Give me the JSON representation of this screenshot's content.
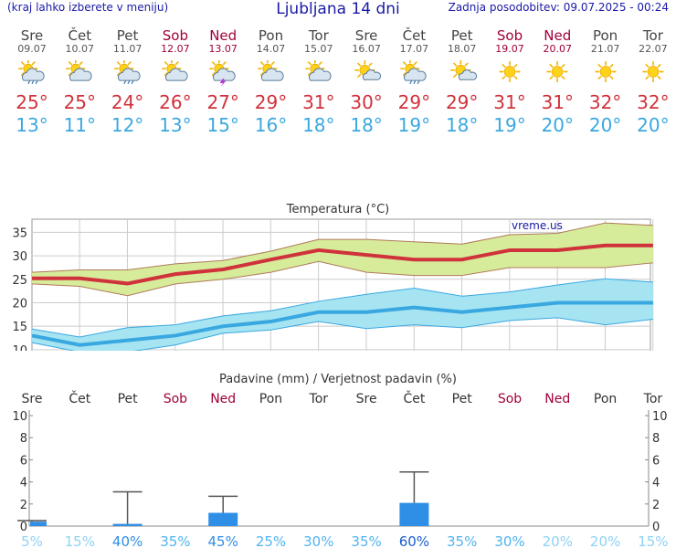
{
  "header": {
    "left": "(kraj lahko izberete v meniju)",
    "title": "Ljubljana 14 dni",
    "right": "Zadnja posodobitev: 09.07.2025 - 00:24"
  },
  "days": [
    {
      "name": "Sre",
      "date": "09.07",
      "weekend": false,
      "icon": "sun-cloud-rain-icon",
      "tmax": "25°",
      "tmin": "13°"
    },
    {
      "name": "Čet",
      "date": "10.07",
      "weekend": false,
      "icon": "sun-cloud-icon",
      "tmax": "25°",
      "tmin": "11°"
    },
    {
      "name": "Pet",
      "date": "11.07",
      "weekend": false,
      "icon": "sun-cloud-rain-icon",
      "tmax": "24°",
      "tmin": "12°"
    },
    {
      "name": "Sob",
      "date": "12.07",
      "weekend": true,
      "icon": "sun-cloud-icon",
      "tmax": "26°",
      "tmin": "13°"
    },
    {
      "name": "Ned",
      "date": "13.07",
      "weekend": true,
      "icon": "sun-cloud-storm-icon",
      "tmax": "27°",
      "tmin": "15°"
    },
    {
      "name": "Pon",
      "date": "14.07",
      "weekend": false,
      "icon": "sun-cloud-icon",
      "tmax": "29°",
      "tmin": "16°"
    },
    {
      "name": "Tor",
      "date": "15.07",
      "weekend": false,
      "icon": "sun-cloud-icon",
      "tmax": "31°",
      "tmin": "18°"
    },
    {
      "name": "Sre",
      "date": "16.07",
      "weekend": false,
      "icon": "sun-small-cloud-icon",
      "tmax": "30°",
      "tmin": "18°"
    },
    {
      "name": "Čet",
      "date": "17.07",
      "weekend": false,
      "icon": "sun-cloud-rain-icon",
      "tmax": "29°",
      "tmin": "19°"
    },
    {
      "name": "Pet",
      "date": "18.07",
      "weekend": false,
      "icon": "sun-small-cloud-icon",
      "tmax": "29°",
      "tmin": "18°"
    },
    {
      "name": "Sob",
      "date": "19.07",
      "weekend": true,
      "icon": "sun-icon",
      "tmax": "31°",
      "tmin": "19°"
    },
    {
      "name": "Ned",
      "date": "20.07",
      "weekend": true,
      "icon": "sun-icon",
      "tmax": "31°",
      "tmin": "20°"
    },
    {
      "name": "Pon",
      "date": "21.07",
      "weekend": false,
      "icon": "sun-icon",
      "tmax": "32°",
      "tmin": "20°"
    },
    {
      "name": "Tor",
      "date": "22.07",
      "weekend": false,
      "icon": "sun-icon",
      "tmax": "32°",
      "tmin": "20°"
    }
  ],
  "colors": {
    "max": "#d0323c",
    "min": "#3aa8e0",
    "weekend": "#a0003a",
    "max_band": "#d6ec9a",
    "min_band": "#a6e4f2",
    "precip_bar": "#2f8ee6"
  },
  "chart_data": [
    {
      "type": "line",
      "title": "Temperatura (°C)",
      "watermark": "vreme.us",
      "categories": [
        "Sre",
        "Čet",
        "Pet",
        "Sob",
        "Ned",
        "Pon",
        "Tor",
        "Sre",
        "Čet",
        "Pet",
        "Sob",
        "Ned",
        "Pon",
        "Tor"
      ],
      "ylim": [
        9,
        38
      ],
      "yticks": [
        10,
        15,
        20,
        25,
        30,
        35
      ],
      "grid": true,
      "series": [
        {
          "values": [
            25.2,
            25.2,
            24.1,
            26.1,
            27.1,
            29.2,
            31.2,
            30.2,
            29.2,
            29.2,
            31.2,
            31.2,
            32.2,
            32.2
          ],
          "low": [
            24,
            23.5,
            21.5,
            24,
            25,
            26.5,
            28.8,
            26.5,
            25.8,
            25.8,
            27.5,
            27.5,
            27.5,
            28.5
          ],
          "high": [
            26.5,
            27,
            27,
            28.3,
            29,
            31,
            33.5,
            33.5,
            33,
            32.5,
            34.5,
            34.8,
            37,
            36.5
          ]
        },
        {
          "values": [
            13,
            11,
            12,
            13,
            15,
            16,
            18,
            18,
            19,
            18,
            19,
            20,
            20,
            20
          ],
          "low": [
            11.5,
            9.5,
            9.5,
            11,
            13.5,
            14.2,
            16,
            14.5,
            15.3,
            14.7,
            16.2,
            16.8,
            15.3,
            16.5
          ],
          "high": [
            14.4,
            12.7,
            14.7,
            15.3,
            17.2,
            18.3,
            20.3,
            21.8,
            23.1,
            21.4,
            22.3,
            23.8,
            25.1,
            24.4
          ]
        }
      ]
    },
    {
      "type": "bar",
      "title": "Padavine (mm) / Verjetnost padavin (%)",
      "categories": [
        "Sre",
        "Čet",
        "Pet",
        "Sob",
        "Ned",
        "Pon",
        "Tor",
        "Sre",
        "Čet",
        "Pet",
        "Sob",
        "Ned",
        "Pon",
        "Tor"
      ],
      "ylim": [
        0,
        10.5
      ],
      "yticks": [
        0,
        2,
        4,
        6,
        8,
        10
      ],
      "values": [
        0.4,
        0,
        0.2,
        0,
        1.2,
        0,
        0,
        0,
        2.1,
        0,
        0,
        0,
        0,
        0
      ],
      "error_high": [
        0.5,
        0,
        3.1,
        0,
        2.7,
        0,
        0,
        0,
        4.9,
        0,
        0,
        0,
        0,
        0
      ],
      "probability": [
        "5%",
        "15%",
        "40%",
        "35%",
        "45%",
        "25%",
        "30%",
        "35%",
        "60%",
        "35%",
        "30%",
        "20%",
        "20%",
        "15%"
      ]
    }
  ]
}
